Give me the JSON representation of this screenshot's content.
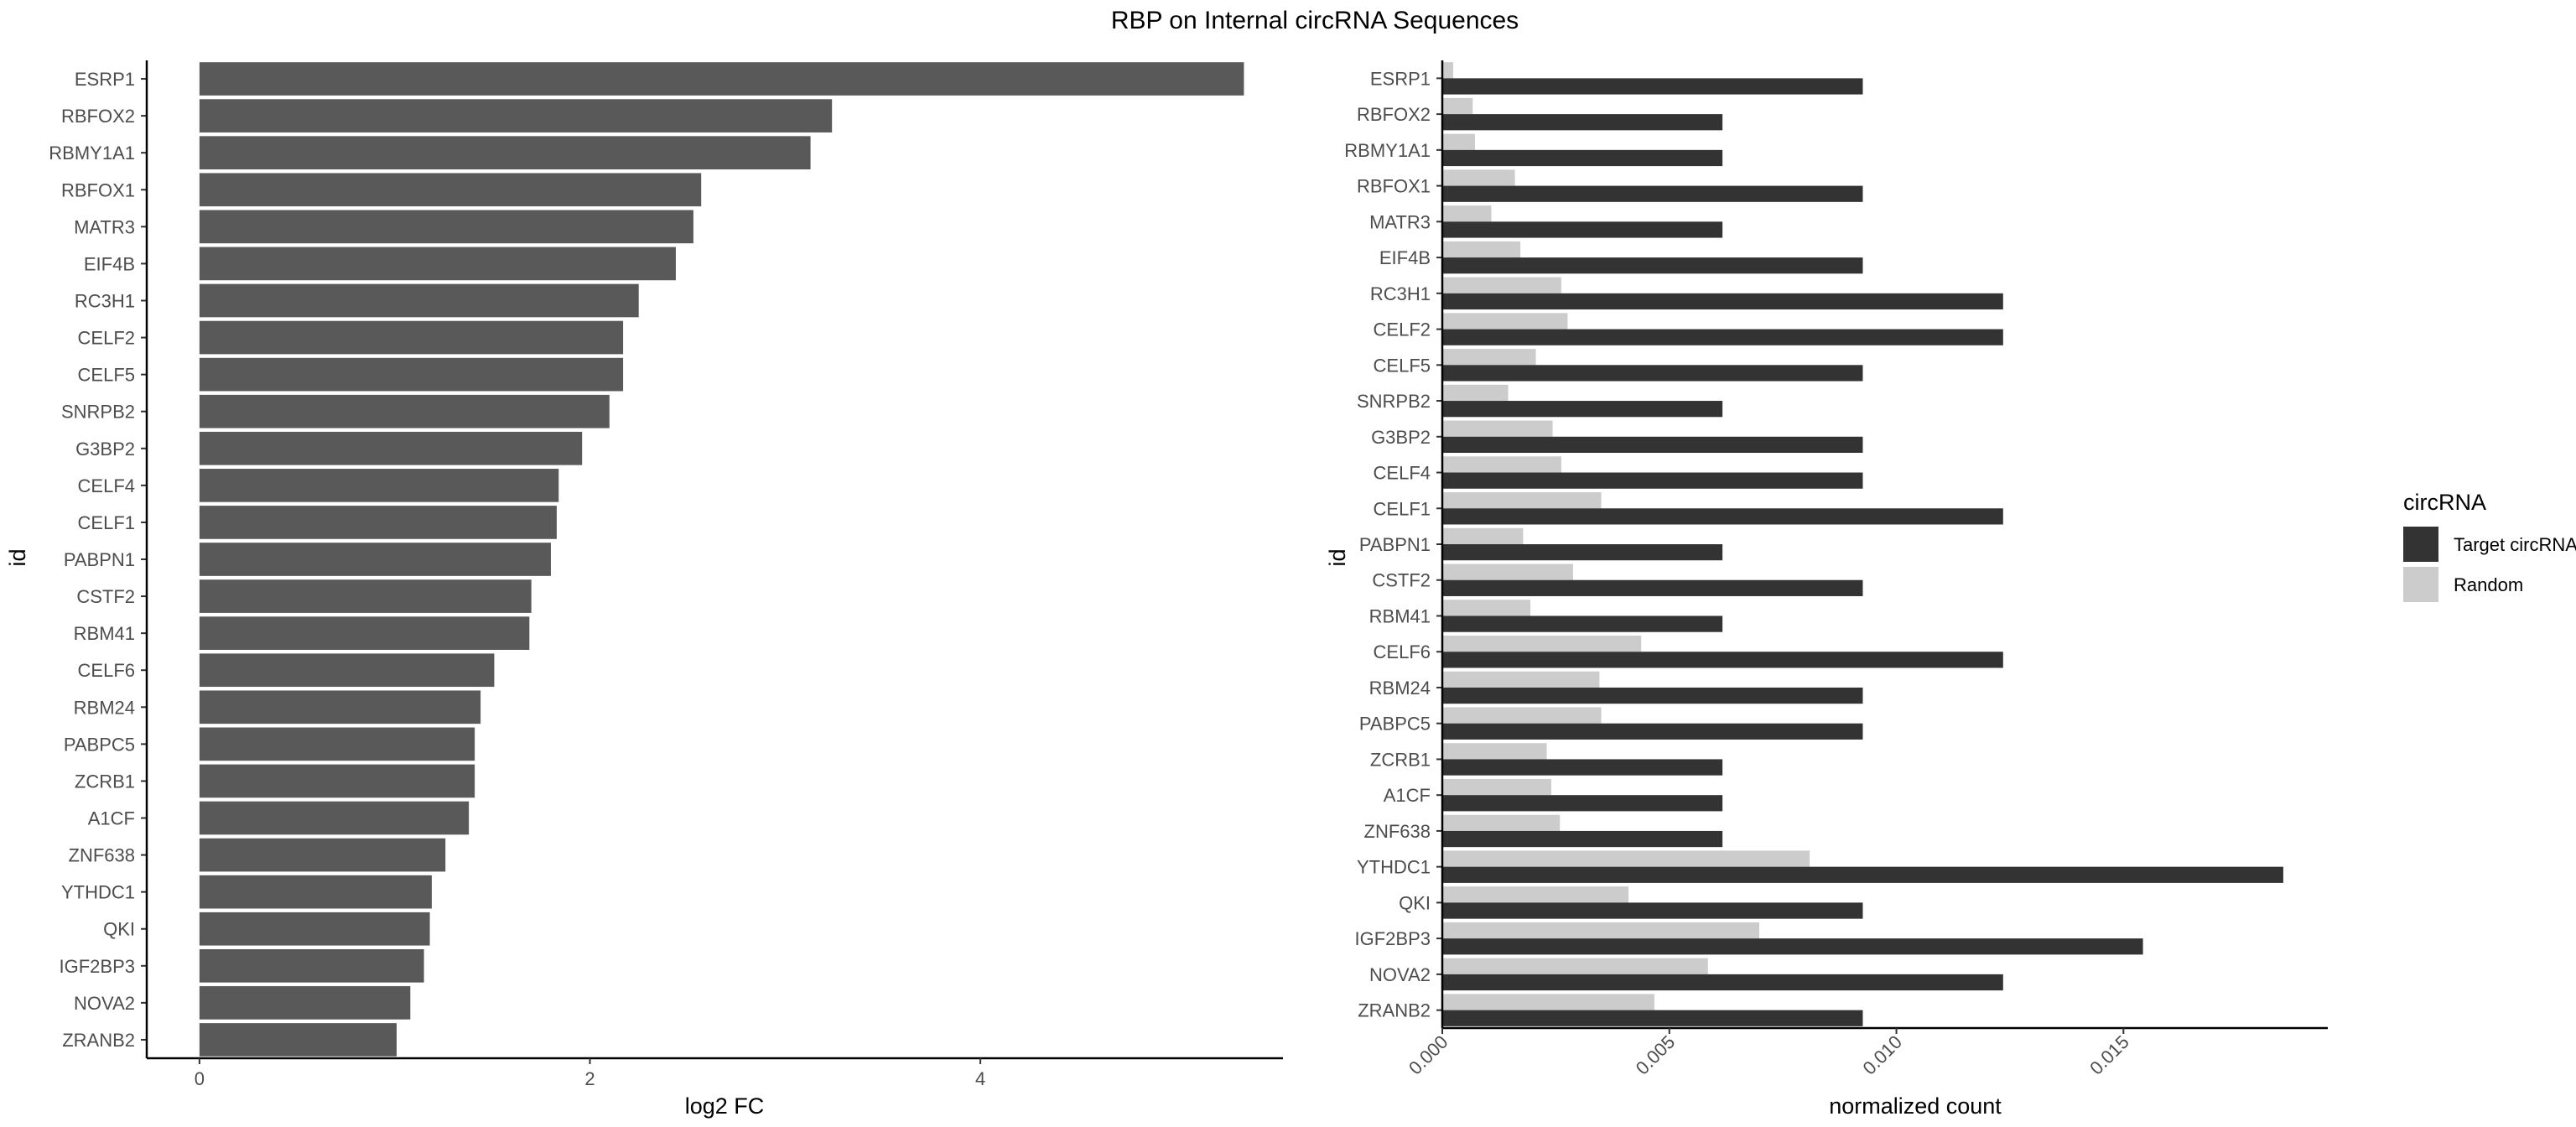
{
  "title": "RBP on Internal circRNA Sequences",
  "chart_data": [
    {
      "type": "bar",
      "orientation": "horizontal",
      "categories": [
        "ESRP1",
        "RBFOX2",
        "RBMY1A1",
        "RBFOX1",
        "MATR3",
        "EIF4B",
        "RC3H1",
        "CELF2",
        "CELF5",
        "SNRPB2",
        "G3BP2",
        "CELF4",
        "CELF1",
        "PABPN1",
        "CSTF2",
        "RBM41",
        "CELF6",
        "RBM24",
        "PABPC5",
        "ZCRB1",
        "A1CF",
        "ZNF638",
        "YTHDC1",
        "QKI",
        "IGF2BP3",
        "NOVA2",
        "ZRANB2"
      ],
      "values": [
        5.35,
        3.24,
        3.13,
        2.57,
        2.53,
        2.44,
        2.25,
        2.17,
        2.17,
        2.1,
        1.96,
        1.84,
        1.83,
        1.8,
        1.7,
        1.69,
        1.51,
        1.44,
        1.41,
        1.41,
        1.38,
        1.26,
        1.19,
        1.18,
        1.15,
        1.08,
        1.01
      ],
      "xlabel": "log2 FC",
      "ylabel": "id",
      "xlim": [
        -0.27,
        5.55
      ],
      "xticks": [
        0,
        2,
        4
      ],
      "xtick_labels": [
        "0",
        "2",
        "4"
      ],
      "bar_color": "#595959",
      "grid": false
    },
    {
      "type": "bar",
      "orientation": "horizontal",
      "grouped": true,
      "categories": [
        "ESRP1",
        "RBFOX2",
        "RBMY1A1",
        "RBFOX1",
        "MATR3",
        "EIF4B",
        "RC3H1",
        "CELF2",
        "CELF5",
        "SNRPB2",
        "G3BP2",
        "CELF4",
        "CELF1",
        "PABPN1",
        "CSTF2",
        "RBM41",
        "CELF6",
        "RBM24",
        "PABPC5",
        "ZCRB1",
        "A1CF",
        "ZNF638",
        "YTHDC1",
        "QKI",
        "IGF2BP3",
        "NOVA2",
        "ZRANB2"
      ],
      "series": [
        {
          "name": "Target circRNAs",
          "color": "#333333",
          "values": [
            0.00926,
            0.00617,
            0.00617,
            0.00926,
            0.00617,
            0.00926,
            0.01235,
            0.01235,
            0.00926,
            0.00617,
            0.00926,
            0.00926,
            0.01235,
            0.00617,
            0.00926,
            0.00617,
            0.01235,
            0.00926,
            0.00926,
            0.00617,
            0.00617,
            0.00617,
            0.01852,
            0.00926,
            0.01543,
            0.01235,
            0.00926
          ]
        },
        {
          "name": "Random",
          "color": "#cccccc",
          "values": [
            0.00024,
            0.00067,
            0.00072,
            0.0016,
            0.00108,
            0.00172,
            0.00262,
            0.00276,
            0.00206,
            0.00145,
            0.00243,
            0.00262,
            0.0035,
            0.00178,
            0.00288,
            0.00194,
            0.00438,
            0.00346,
            0.0035,
            0.0023,
            0.0024,
            0.00259,
            0.00809,
            0.0041,
            0.00698,
            0.00585,
            0.00467
          ]
        }
      ],
      "xlabel": "normalized count",
      "ylabel": "id",
      "xlim": [
        0,
        0.0195
      ],
      "xticks": [
        0,
        0.005,
        0.01,
        0.015
      ],
      "xtick_labels": [
        "0.000",
        "0.005",
        "0.010",
        "0.015"
      ],
      "legend": {
        "title": "circRNA",
        "position": "right",
        "entries": [
          "Target circRNAs",
          "Random"
        ]
      },
      "grid": false
    }
  ]
}
